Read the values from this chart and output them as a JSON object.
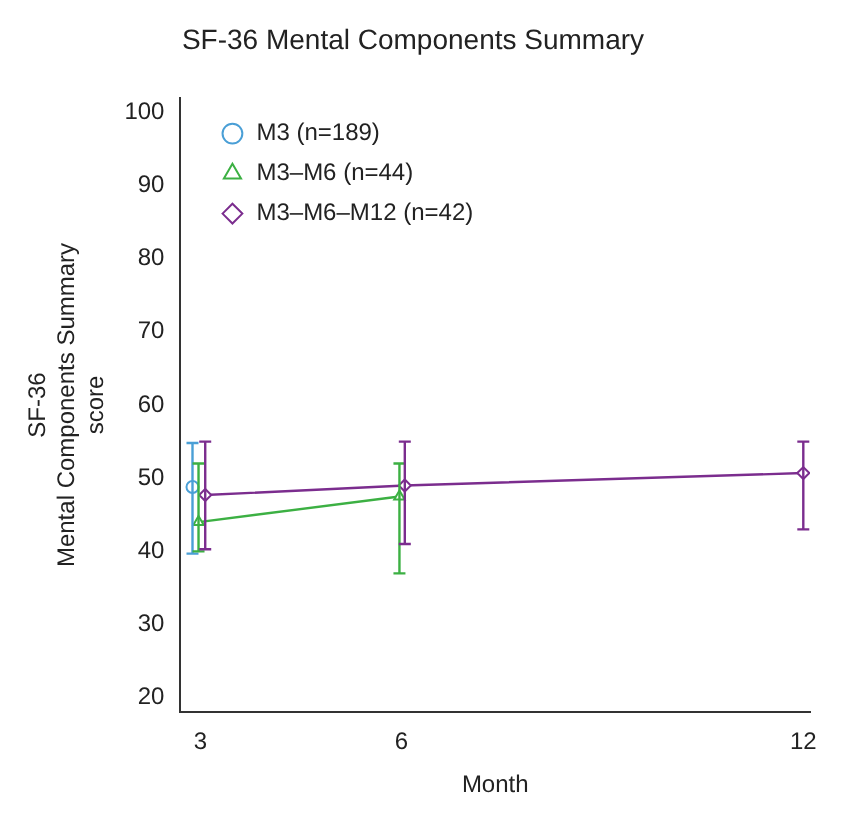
{
  "chart_data": {
    "type": "line",
    "title": "SF-36 Mental Components Summary",
    "xlabel": "Month",
    "ylabel": "SF-36\nMental Components Summary\nscore",
    "xlim": [
      2.7,
      12.1
    ],
    "xticks": [
      3,
      6,
      12
    ],
    "ylim": [
      18,
      102
    ],
    "yticks": [
      20,
      30,
      40,
      50,
      60,
      70,
      80,
      90,
      100
    ],
    "grid": false,
    "legend": "top left",
    "line_style": "solid",
    "series": [
      {
        "name": "M3 (n=189)",
        "color": "#4a9fd6",
        "marker": "circle",
        "x": [
          2.88
        ],
        "values": [
          48.8
        ],
        "errors": [
          [
            39.7,
            54.8
          ]
        ]
      },
      {
        "name": "M3–M6 (n=44)",
        "color": "#3cb043",
        "marker": "triangle",
        "x": [
          2.97,
          5.97
        ],
        "values": [
          44,
          47.5
        ],
        "errors": [
          [
            40,
            52
          ],
          [
            37,
            52
          ]
        ]
      },
      {
        "name": "M3–M6–M12 (n=42)",
        "color": "#7b2d8e",
        "marker": "diamond",
        "x": [
          3.07,
          6.05,
          12
        ],
        "values": [
          47.7,
          49,
          50.7
        ],
        "errors": [
          [
            40.3,
            55
          ],
          [
            41,
            55
          ],
          [
            43,
            55
          ]
        ]
      }
    ]
  }
}
